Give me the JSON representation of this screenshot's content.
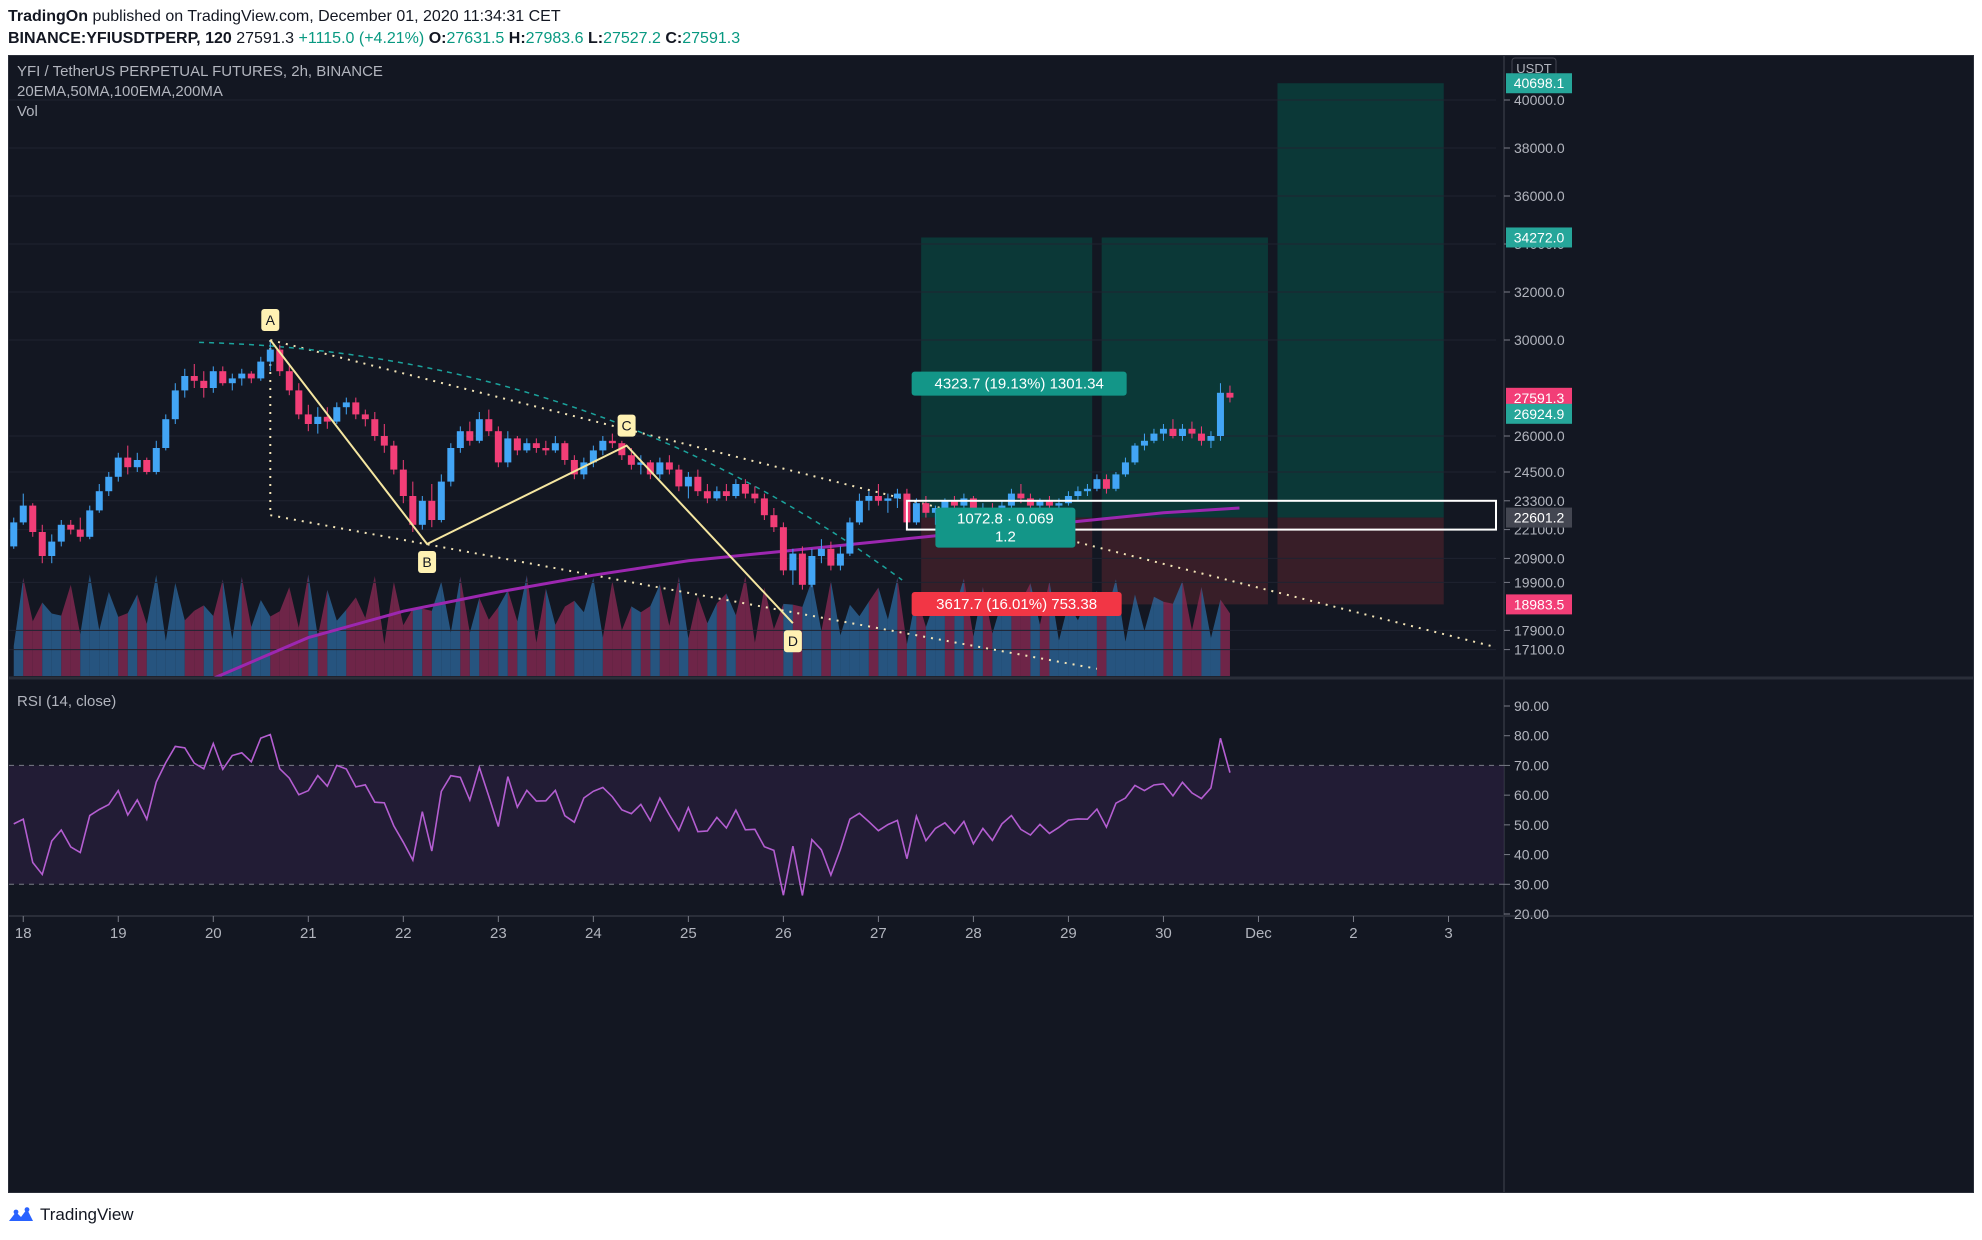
{
  "header": {
    "publisher": "TradingOn",
    "published_text": "published on TradingView.com, December 01, 2020 11:34:31 CET",
    "symbol": "BINANCE:YFIUSDTPERP, 120",
    "last": "27591.3",
    "change": "+1115.0 (+4.21%)",
    "o_label": "O:",
    "o": "27631.5",
    "h_label": "H:",
    "h": "27983.6",
    "l_label": "L:",
    "l": "27527.2",
    "c_label": "C:",
    "c": "27591.3"
  },
  "pane": {
    "title": "YFI / TetherUS PERPETUAL FUTURES, 2h, BINANCE",
    "indicators": "20EMA,50MA,100EMA,200MA",
    "vol": "Vol",
    "rsi_title": "RSI (14, close)",
    "currency": "USDT"
  },
  "footer": {
    "brand": "TradingView"
  },
  "colors": {
    "up": "#42a5f5",
    "down": "#f23e77",
    "bg": "#131722",
    "ma": "#9c27b0",
    "target": "#0b3a39",
    "stop": "#3a1f29",
    "rsi": "#b45ed1"
  },
  "chart_data": {
    "type": "candlestick",
    "price_axis": {
      "ylim": [
        16000,
        41000
      ],
      "ticks": [
        40000,
        38000,
        36000,
        34000,
        32000,
        30000,
        26000,
        24500,
        23300,
        22100,
        20900,
        19900,
        17900,
        17100
      ],
      "tick_labels": [
        "40000.0",
        "38000.0",
        "36000.0",
        "34000.0",
        "32000.0",
        "30000.0",
        "26000.0",
        "24500.0",
        "23300.0",
        "22100.0",
        "20900.0",
        "19900.0",
        "17900.0",
        "17100.0"
      ]
    },
    "x_axis": {
      "labels": [
        "18",
        "19",
        "20",
        "21",
        "22",
        "23",
        "24",
        "25",
        "26",
        "27",
        "28",
        "29",
        "30",
        "Dec",
        "2",
        "3"
      ],
      "xlim": [
        17.85,
        33.5
      ]
    },
    "price_labels": [
      {
        "text": "40698.1",
        "value": 40698.1,
        "color": "#26a69a"
      },
      {
        "text": "34272.0",
        "value": 34272.0,
        "color": "#26a69a"
      },
      {
        "text": "27591.3",
        "value": 27591.3,
        "color": "#f23e77"
      },
      {
        "text": "26924.9",
        "value": 26924.9,
        "color": "#26a69a"
      },
      {
        "text": "22601.2",
        "value": 22601.2,
        "color": "#434651"
      },
      {
        "text": "18983.5",
        "value": 18983.5,
        "color": "#f23e77"
      }
    ],
    "candles": [
      [
        17.9,
        21400,
        22600,
        21300,
        22400
      ],
      [
        18.0,
        22400,
        23600,
        22300,
        23100
      ],
      [
        18.1,
        23100,
        23200,
        21800,
        22000
      ],
      [
        18.2,
        22000,
        22300,
        20700,
        21000
      ],
      [
        18.3,
        21000,
        21900,
        20700,
        21600
      ],
      [
        18.4,
        21600,
        22500,
        21400,
        22300
      ],
      [
        18.5,
        22300,
        22500,
        21900,
        22100
      ],
      [
        18.6,
        22100,
        22600,
        21600,
        21800
      ],
      [
        18.7,
        21800,
        23100,
        21700,
        22900
      ],
      [
        18.8,
        22900,
        24000,
        22800,
        23700
      ],
      [
        18.9,
        23700,
        24500,
        23500,
        24300
      ],
      [
        19.0,
        24300,
        25300,
        24100,
        25100
      ],
      [
        19.1,
        25100,
        25600,
        24400,
        24700
      ],
      [
        19.2,
        24700,
        25300,
        24500,
        25000
      ],
      [
        19.3,
        25000,
        25100,
        24400,
        24500
      ],
      [
        19.4,
        24500,
        25800,
        24400,
        25500
      ],
      [
        19.5,
        25500,
        26900,
        25400,
        26700
      ],
      [
        19.6,
        26700,
        28200,
        26500,
        27900
      ],
      [
        19.7,
        27900,
        28800,
        27600,
        28500
      ],
      [
        19.8,
        28500,
        29000,
        28000,
        28300
      ],
      [
        19.9,
        28300,
        28700,
        27600,
        28000
      ],
      [
        20.0,
        28000,
        28900,
        27800,
        28700
      ],
      [
        20.1,
        28700,
        28900,
        28100,
        28200
      ],
      [
        20.2,
        28200,
        28600,
        27900,
        28400
      ],
      [
        20.3,
        28400,
        28800,
        28100,
        28600
      ],
      [
        20.4,
        28600,
        28700,
        28200,
        28400
      ],
      [
        20.5,
        28400,
        29300,
        28300,
        29100
      ],
      [
        20.6,
        29100,
        30000,
        28700,
        29600
      ],
      [
        20.7,
        29600,
        29800,
        28500,
        28700
      ],
      [
        20.8,
        28700,
        29000,
        27700,
        27900
      ],
      [
        20.9,
        27900,
        28200,
        26700,
        26900
      ],
      [
        21.0,
        26900,
        27300,
        26200,
        26500
      ],
      [
        21.1,
        26500,
        27200,
        26100,
        26800
      ],
      [
        21.2,
        26800,
        27200,
        26300,
        26600
      ],
      [
        21.3,
        26600,
        27400,
        26500,
        27200
      ],
      [
        21.4,
        27200,
        27600,
        26900,
        27400
      ],
      [
        21.5,
        27400,
        27600,
        26700,
        26900
      ],
      [
        21.6,
        26900,
        27100,
        26400,
        26700
      ],
      [
        21.7,
        26700,
        27000,
        25800,
        26000
      ],
      [
        21.8,
        26000,
        26500,
        25300,
        25600
      ],
      [
        21.9,
        25600,
        25800,
        24400,
        24600
      ],
      [
        22.0,
        24600,
        25000,
        23200,
        23500
      ],
      [
        22.1,
        23500,
        24100,
        22000,
        22300
      ],
      [
        22.2,
        22300,
        23500,
        22100,
        23300
      ],
      [
        22.3,
        23300,
        24000,
        22200,
        22500
      ],
      [
        22.4,
        22500,
        24400,
        22400,
        24100
      ],
      [
        22.5,
        24100,
        25700,
        23900,
        25500
      ],
      [
        22.6,
        25500,
        26400,
        25300,
        26200
      ],
      [
        22.7,
        26200,
        26600,
        25600,
        25800
      ],
      [
        22.8,
        25800,
        27000,
        25700,
        26700
      ],
      [
        22.9,
        26700,
        27100,
        26000,
        26200
      ],
      [
        23.0,
        26200,
        26400,
        24700,
        24900
      ],
      [
        23.1,
        24900,
        26200,
        24700,
        25900
      ],
      [
        23.2,
        25900,
        26000,
        25200,
        25400
      ],
      [
        23.3,
        25400,
        25900,
        25300,
        25700
      ],
      [
        23.4,
        25700,
        25900,
        25300,
        25500
      ],
      [
        23.5,
        25500,
        25800,
        25200,
        25400
      ],
      [
        23.6,
        25400,
        26000,
        25300,
        25700
      ],
      [
        23.7,
        25700,
        25800,
        24800,
        25000
      ],
      [
        23.8,
        25000,
        25200,
        24200,
        24400
      ],
      [
        23.9,
        24400,
        25100,
        24200,
        24900
      ],
      [
        24.0,
        24900,
        25600,
        24700,
        25400
      ],
      [
        24.1,
        25400,
        26000,
        25200,
        25800
      ],
      [
        24.2,
        25800,
        26100,
        25500,
        25700
      ],
      [
        24.3,
        25700,
        25800,
        25000,
        25200
      ],
      [
        24.4,
        25200,
        25500,
        24600,
        24800
      ],
      [
        24.5,
        24800,
        25200,
        24400,
        24900
      ],
      [
        24.6,
        24900,
        25000,
        24200,
        24400
      ],
      [
        24.7,
        24400,
        25100,
        24200,
        24900
      ],
      [
        24.8,
        24900,
        25200,
        24400,
        24600
      ],
      [
        24.9,
        24600,
        24800,
        23700,
        23900
      ],
      [
        25.0,
        23900,
        24500,
        23400,
        24300
      ],
      [
        25.1,
        24300,
        24600,
        23500,
        23700
      ],
      [
        25.2,
        23700,
        24000,
        23200,
        23400
      ],
      [
        25.3,
        23400,
        23900,
        23300,
        23700
      ],
      [
        25.4,
        23700,
        24000,
        23300,
        23500
      ],
      [
        25.5,
        23500,
        24200,
        23400,
        24000
      ],
      [
        25.6,
        24000,
        24200,
        23400,
        23600
      ],
      [
        25.7,
        23600,
        23900,
        23200,
        23400
      ],
      [
        25.8,
        23400,
        23600,
        22500,
        22700
      ],
      [
        25.9,
        22700,
        23000,
        22000,
        22200
      ],
      [
        26.0,
        22200,
        22400,
        20200,
        20400
      ],
      [
        26.1,
        20400,
        21300,
        19800,
        21100
      ],
      [
        26.2,
        21100,
        21400,
        19600,
        19800
      ],
      [
        26.3,
        19800,
        21300,
        19700,
        21000
      ],
      [
        26.4,
        21000,
        21700,
        20700,
        21300
      ],
      [
        26.5,
        21300,
        21600,
        20400,
        20600
      ],
      [
        26.6,
        20600,
        21400,
        20400,
        21100
      ],
      [
        26.7,
        21100,
        22600,
        21000,
        22400
      ],
      [
        26.8,
        22400,
        23600,
        22300,
        23300
      ],
      [
        26.9,
        23300,
        23700,
        22900,
        23500
      ],
      [
        27.0,
        23500,
        24000,
        23100,
        23300
      ],
      [
        27.1,
        23300,
        23600,
        22800,
        23400
      ],
      [
        27.2,
        23400,
        23800,
        23000,
        23600
      ],
      [
        27.3,
        23600,
        23800,
        22200,
        22400
      ],
      [
        27.4,
        22400,
        23400,
        22300,
        23200
      ],
      [
        27.5,
        23200,
        23500,
        22600,
        22800
      ],
      [
        27.6,
        22800,
        23100,
        22300,
        23000
      ],
      [
        27.7,
        23000,
        23400,
        22700,
        23300
      ],
      [
        27.8,
        23300,
        23500,
        22900,
        23100
      ],
      [
        27.9,
        23100,
        23600,
        22800,
        23400
      ],
      [
        28.0,
        23400,
        23500,
        22600,
        22800
      ],
      [
        28.1,
        22800,
        23200,
        22600,
        23000
      ],
      [
        28.2,
        23000,
        23200,
        22500,
        22700
      ],
      [
        28.3,
        22700,
        23300,
        22600,
        23100
      ],
      [
        28.4,
        23100,
        23800,
        23000,
        23600
      ],
      [
        28.5,
        23600,
        24000,
        23200,
        23400
      ],
      [
        28.6,
        23400,
        23600,
        22900,
        23100
      ],
      [
        28.7,
        23100,
        23400,
        22800,
        23300
      ],
      [
        28.8,
        23300,
        23500,
        22900,
        23100
      ],
      [
        28.9,
        23100,
        23400,
        22900,
        23200
      ],
      [
        29.0,
        23200,
        23700,
        23100,
        23500
      ],
      [
        29.1,
        23500,
        23900,
        23300,
        23700
      ],
      [
        29.2,
        23700,
        24000,
        23500,
        23800
      ],
      [
        29.3,
        23800,
        24400,
        23700,
        24200
      ],
      [
        29.4,
        24200,
        24400,
        23600,
        23800
      ],
      [
        29.5,
        23800,
        24500,
        23700,
        24400
      ],
      [
        29.6,
        24400,
        25100,
        24300,
        24900
      ],
      [
        29.7,
        24900,
        25700,
        24800,
        25600
      ],
      [
        29.8,
        25600,
        26100,
        25400,
        25800
      ],
      [
        29.9,
        25800,
        26300,
        25700,
        26100
      ],
      [
        30.0,
        26100,
        26500,
        25800,
        26300
      ],
      [
        30.1,
        26300,
        26700,
        25900,
        26000
      ],
      [
        30.2,
        26000,
        26500,
        25800,
        26300
      ],
      [
        30.3,
        26300,
        26600,
        25900,
        26100
      ],
      [
        30.4,
        26100,
        26400,
        25600,
        25800
      ],
      [
        30.5,
        25800,
        26200,
        25500,
        26000
      ],
      [
        30.6,
        26000,
        28200,
        25800,
        27800
      ],
      [
        30.7,
        27800,
        28100,
        27400,
        27600
      ]
    ],
    "ma_line": [
      [
        20.0,
        15900
      ],
      [
        21.0,
        17600
      ],
      [
        22.0,
        18700
      ],
      [
        23.0,
        19500
      ],
      [
        24.0,
        20200
      ],
      [
        25.0,
        20800
      ],
      [
        26.0,
        21200
      ],
      [
        27.0,
        21600
      ],
      [
        28.0,
        22000
      ],
      [
        29.0,
        22400
      ],
      [
        30.0,
        22800
      ],
      [
        30.8,
        23000
      ]
    ],
    "rsi": {
      "ylim": [
        20,
        90
      ],
      "ticks": [
        90,
        80,
        70,
        60,
        50,
        40,
        30,
        20
      ],
      "tick_labels": [
        "90.00",
        "80.00",
        "70.00",
        "60.00",
        "50.00",
        "40.00",
        "30.00",
        "20.00"
      ],
      "bands": [
        70,
        30
      ]
    },
    "harmonic_points": [
      {
        "label": "A",
        "x": 20.6,
        "y": 30000
      },
      {
        "label": "B",
        "x": 22.25,
        "y": 21500
      },
      {
        "label": "C",
        "x": 24.35,
        "y": 25600
      },
      {
        "label": "D",
        "x": 26.1,
        "y": 18200
      }
    ],
    "positions": [
      {
        "label": "4323.7 (19.13%) 1301.34"
      },
      {
        "label": "3617.7 (16.01%) 753.38"
      },
      {
        "label": "1072.8 · 0.069",
        "sub": "1.2"
      }
    ]
  }
}
